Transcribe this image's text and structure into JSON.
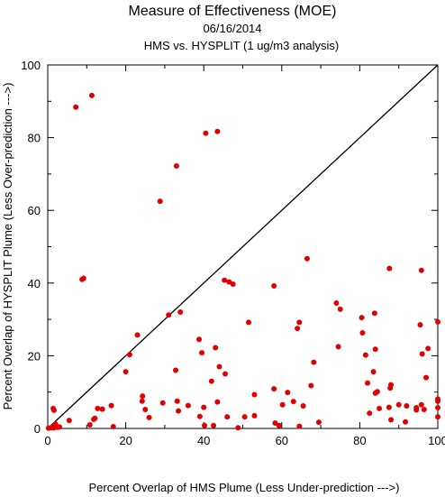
{
  "chart_data": {
    "type": "scatter",
    "title": "Measure of Effectiveness (MOE)",
    "subtitle": "06/16/2014",
    "subtitle2": "HMS vs. HYSPLIT  (1 ug/m3 analysis)",
    "xlabel": "Percent Overlap of HMS Plume (Less Under-prediction --->)",
    "ylabel": "Percent Overlap of HYSPLIT Plume (Less Over-prediction --->)",
    "xlim": [
      0,
      100
    ],
    "ylim": [
      0,
      100
    ],
    "xticks": [
      "0",
      "20",
      "40",
      "60",
      "80",
      "100"
    ],
    "yticks": [
      "0",
      "20",
      "40",
      "60",
      "80",
      "100"
    ],
    "grid": false,
    "marker_color": "#e00000",
    "reference_line": "y = x",
    "points": [
      [
        0.2,
        0.1
      ],
      [
        0.8,
        0.2
      ],
      [
        1.2,
        0.3
      ],
      [
        1.6,
        0.2
      ],
      [
        2.0,
        1.2
      ],
      [
        2.5,
        0.3
      ],
      [
        3.0,
        0.4
      ],
      [
        1.4,
        5.5
      ],
      [
        1.6,
        5.0
      ],
      [
        5.5,
        2.2
      ],
      [
        7.2,
        88.4
      ],
      [
        8.8,
        41.0
      ],
      [
        9.2,
        41.3
      ],
      [
        11.3,
        91.6
      ],
      [
        10.8,
        1.0
      ],
      [
        11.8,
        2.5
      ],
      [
        12.1,
        2.8
      ],
      [
        12.8,
        5.5
      ],
      [
        14.0,
        5.3
      ],
      [
        16.3,
        6.3
      ],
      [
        16.8,
        0.5
      ],
      [
        20.0,
        15.6
      ],
      [
        21.0,
        20.3
      ],
      [
        23.0,
        25.7
      ],
      [
        24.2,
        7.5
      ],
      [
        24.3,
        8.9
      ],
      [
        25.0,
        5.2
      ],
      [
        26.0,
        3.0
      ],
      [
        28.8,
        62.5
      ],
      [
        29.5,
        7.0
      ],
      [
        31.0,
        31.2
      ],
      [
        33.0,
        72.2
      ],
      [
        32.8,
        16.0
      ],
      [
        33.2,
        7.5
      ],
      [
        33.5,
        4.8
      ],
      [
        34.0,
        32.0
      ],
      [
        36.0,
        6.3
      ],
      [
        38.8,
        24.5
      ],
      [
        39.0,
        3.3
      ],
      [
        39.5,
        20.8
      ],
      [
        40.0,
        5.8
      ],
      [
        40.2,
        0.8
      ],
      [
        40.5,
        81.2
      ],
      [
        42.0,
        13.0
      ],
      [
        42.5,
        0.8
      ],
      [
        43.0,
        22.2
      ],
      [
        43.5,
        81.7
      ],
      [
        43.5,
        7.3
      ],
      [
        44.0,
        17.0
      ],
      [
        45.3,
        40.8
      ],
      [
        45.5,
        15.0
      ],
      [
        46.0,
        3.2
      ],
      [
        46.5,
        40.3
      ],
      [
        47.5,
        39.7
      ],
      [
        48.8,
        0.2
      ],
      [
        50.5,
        3.2
      ],
      [
        51.5,
        29.2
      ],
      [
        53.0,
        3.5
      ],
      [
        53.0,
        9.3
      ],
      [
        58.0,
        39.2
      ],
      [
        58.0,
        10.9
      ],
      [
        58.3,
        1.5
      ],
      [
        59.3,
        0.8
      ],
      [
        60.2,
        6.5
      ],
      [
        61.5,
        9.9
      ],
      [
        63.0,
        7.4
      ],
      [
        64.0,
        27.5
      ],
      [
        64.5,
        29.2
      ],
      [
        64.5,
        0.6
      ],
      [
        65.5,
        6.2
      ],
      [
        66.5,
        46.7
      ],
      [
        67.5,
        11.8
      ],
      [
        68.2,
        18.2
      ],
      [
        69.5,
        1.7
      ],
      [
        74.0,
        34.5
      ],
      [
        74.5,
        22.5
      ],
      [
        75.0,
        32.8
      ],
      [
        80.5,
        30.5
      ],
      [
        80.7,
        26.3
      ],
      [
        81.5,
        20.2
      ],
      [
        82.0,
        12.5
      ],
      [
        82.5,
        4.2
      ],
      [
        83.5,
        15.6
      ],
      [
        83.8,
        31.7
      ],
      [
        84.0,
        21.8
      ],
      [
        84.0,
        9.7
      ],
      [
        84.5,
        10.1
      ],
      [
        85.0,
        5.5
      ],
      [
        87.5,
        5.8
      ],
      [
        87.6,
        44.0
      ],
      [
        87.8,
        11.1
      ],
      [
        88.0,
        12.0
      ],
      [
        88.0,
        2.4
      ],
      [
        90.0,
        6.5
      ],
      [
        91.7,
        1.8
      ],
      [
        92.0,
        6.2
      ],
      [
        94.5,
        5.7
      ],
      [
        94.5,
        5.1
      ],
      [
        95.5,
        28.5
      ],
      [
        95.8,
        43.5
      ],
      [
        95.8,
        6.5
      ],
      [
        96.0,
        20.5
      ],
      [
        96.5,
        5.2
      ],
      [
        97.0,
        14.0
      ],
      [
        97.5,
        22.0
      ],
      [
        100,
        29.3
      ],
      [
        100,
        8.1
      ],
      [
        100,
        7.5
      ],
      [
        100,
        5.7
      ],
      [
        100,
        3.2
      ]
    ]
  }
}
